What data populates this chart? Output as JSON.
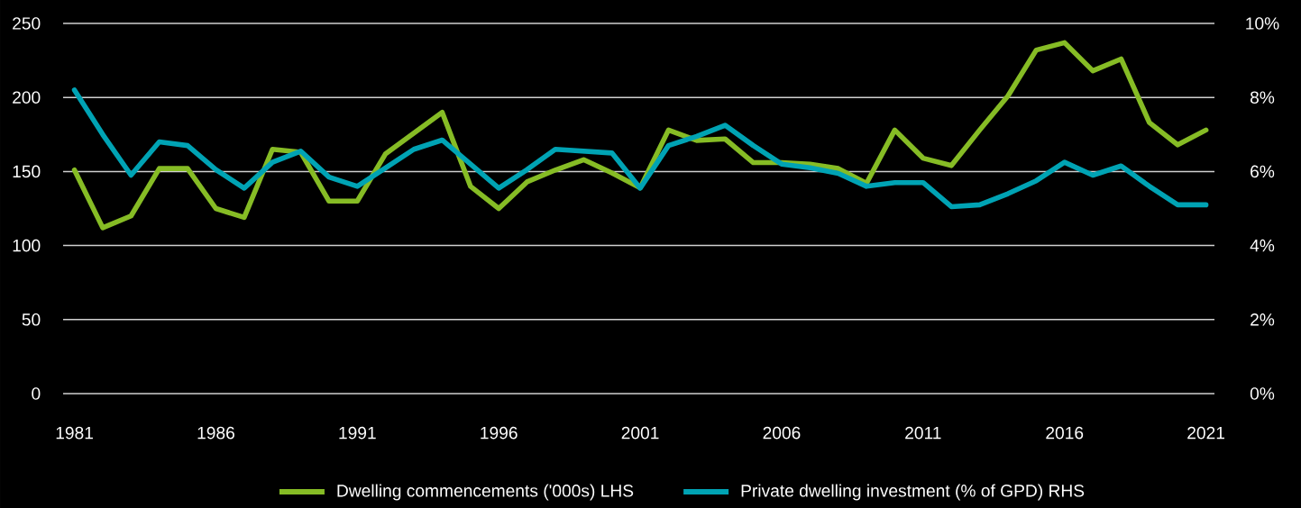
{
  "chart_data": {
    "type": "line",
    "x": [
      1981,
      1982,
      1983,
      1984,
      1985,
      1986,
      1987,
      1988,
      1989,
      1990,
      1991,
      1992,
      1993,
      1994,
      1995,
      1996,
      1997,
      1998,
      1999,
      2000,
      2001,
      2002,
      2003,
      2004,
      2005,
      2006,
      2007,
      2008,
      2009,
      2010,
      2011,
      2012,
      2013,
      2014,
      2015,
      2016,
      2017,
      2018,
      2019,
      2020,
      2021
    ],
    "series": [
      {
        "name": "Dwelling commencements ('000s) LHS",
        "color": "#86bc25",
        "values": [
          151,
          112,
          120,
          152,
          152,
          125,
          119,
          165,
          163,
          130,
          130,
          162,
          176,
          190,
          140,
          125,
          143,
          151,
          158,
          149,
          139,
          178,
          171,
          172,
          156,
          156,
          155,
          152,
          142,
          178,
          159,
          154,
          178,
          201,
          232,
          237,
          218,
          226,
          183,
          168,
          178
        ]
      },
      {
        "name": "Private dwelling investment (% of GPD) RHS",
        "color": "#00a3b4",
        "axis": "y2",
        "values": [
          8.2,
          7.0,
          5.9,
          6.8,
          6.7,
          6.05,
          5.55,
          6.25,
          6.55,
          5.85,
          5.6,
          6.1,
          6.6,
          6.85,
          6.2,
          5.55,
          6.05,
          6.6,
          6.55,
          6.5,
          5.55,
          6.7,
          6.95,
          7.25,
          6.7,
          6.2,
          6.1,
          5.95,
          5.6,
          5.7,
          5.7,
          5.05,
          5.1,
          5.4,
          5.75,
          6.25,
          5.9,
          6.15,
          5.6,
          5.1,
          5.1
        ]
      }
    ],
    "xlim": [
      1980.6,
      2021.3
    ],
    "xticks": [
      1981,
      1986,
      1991,
      1996,
      2001,
      2006,
      2011,
      2016,
      2021
    ],
    "ylim": [
      0,
      250
    ],
    "yticks": [
      0,
      50,
      100,
      150,
      200,
      250
    ],
    "y2lim": [
      0,
      10
    ],
    "y2ticks": [
      {
        "value": 0,
        "label": "0%"
      },
      {
        "value": 2,
        "label": "2%"
      },
      {
        "value": 4,
        "label": "4%"
      },
      {
        "value": 6,
        "label": "6%"
      },
      {
        "value": 8,
        "label": "8%"
      },
      {
        "value": 10,
        "label": "10%"
      }
    ],
    "grid": "y",
    "legend": "bottom",
    "marker": "none",
    "line_style": "solid"
  }
}
